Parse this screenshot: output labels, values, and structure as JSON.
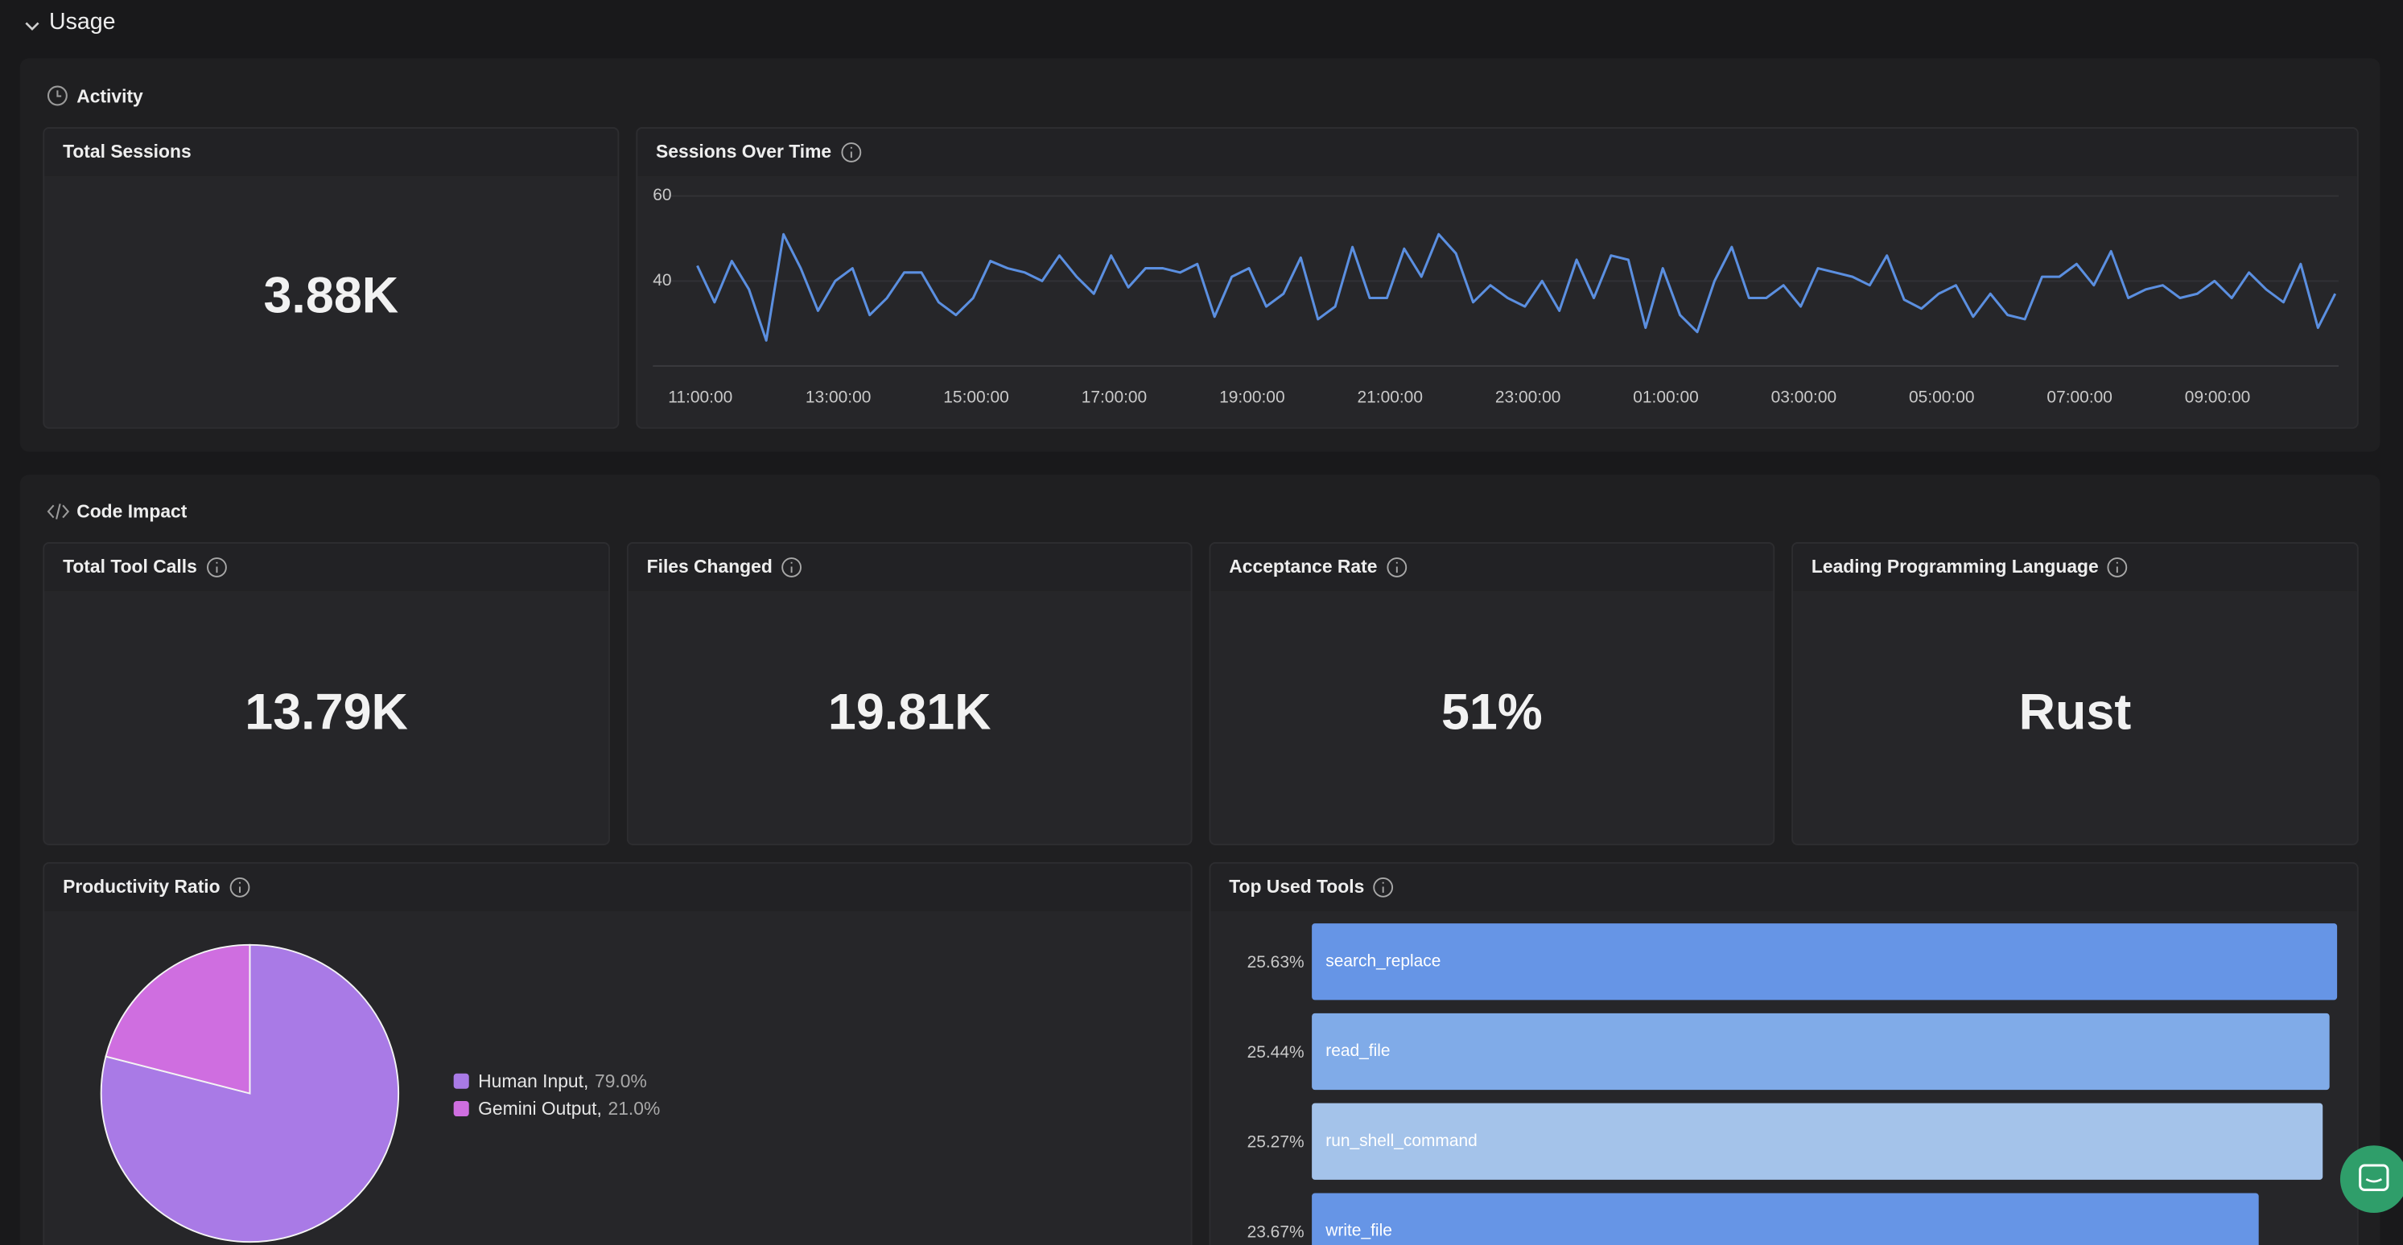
{
  "header": {
    "title": "Usage"
  },
  "activity": {
    "title": "Activity",
    "cards": [
      {
        "title": "Total Sessions",
        "value": "3.88K"
      }
    ]
  },
  "code_impact": {
    "title": "Code Impact",
    "cards": [
      {
        "title": "Total Tool Calls",
        "value": "13.79K"
      },
      {
        "title": "Files Changed",
        "value": "19.81K"
      },
      {
        "title": "Acceptance Rate",
        "value": "51%"
      },
      {
        "title": "Leading Programming Language",
        "value": "Rust"
      }
    ]
  },
  "chart_data": [
    {
      "type": "line",
      "title": "Sessions Over Time",
      "color": "#5b8fe0",
      "grid": true,
      "x": [
        "11:00:00",
        "11:15:00",
        "11:30:00",
        "11:45:00",
        "12:00:00",
        "12:15:00",
        "12:30:00",
        "12:45:00",
        "13:00:00",
        "13:15:00",
        "13:30:00",
        "13:45:00",
        "14:00:00",
        "14:15:00",
        "14:30:00",
        "14:45:00",
        "15:00:00",
        "15:15:00",
        "15:30:00",
        "15:45:00",
        "16:00:00",
        "16:15:00",
        "16:30:00",
        "16:45:00",
        "17:00:00",
        "17:15:00",
        "17:30:00",
        "17:45:00",
        "18:00:00",
        "18:15:00",
        "18:30:00",
        "18:45:00",
        "19:00:00",
        "19:15:00",
        "19:30:00",
        "19:45:00",
        "20:00:00",
        "20:15:00",
        "20:30:00",
        "20:45:00",
        "21:00:00",
        "21:15:00",
        "21:30:00",
        "21:45:00",
        "22:00:00",
        "22:15:00",
        "22:30:00",
        "22:45:00",
        "23:00:00",
        "23:15:00",
        "23:30:00",
        "23:45:00",
        "00:00:00",
        "00:15:00",
        "00:30:00",
        "00:45:00",
        "01:00:00",
        "01:15:00",
        "01:30:00",
        "01:45:00",
        "02:00:00",
        "02:15:00",
        "02:30:00",
        "02:45:00",
        "03:00:00",
        "03:15:00",
        "03:30:00",
        "03:45:00",
        "04:00:00",
        "04:15:00",
        "04:30:00",
        "04:45:00",
        "05:00:00",
        "05:15:00",
        "05:30:00",
        "05:45:00",
        "06:00:00",
        "06:15:00",
        "06:30:00",
        "06:45:00",
        "07:00:00",
        "07:15:00",
        "07:30:00",
        "07:45:00",
        "08:00:00",
        "08:15:00",
        "08:30:00",
        "08:45:00",
        "09:00:00",
        "09:15:00",
        "09:30:00",
        "09:45:00",
        "10:00:00",
        "10:15:00",
        "10:30:00",
        "10:45:00"
      ],
      "values": [
        43.6,
        35,
        44.7,
        38,
        26,
        51,
        43,
        33,
        40,
        43,
        32,
        36,
        42,
        42,
        35,
        32,
        36,
        44.7,
        43,
        42,
        40,
        46,
        41,
        37,
        46,
        38.5,
        43,
        43,
        42,
        44,
        31.6,
        41,
        43,
        34,
        37,
        45.5,
        31,
        34,
        48,
        36,
        36,
        47.6,
        41,
        51,
        46.5,
        35,
        39,
        36,
        34,
        40,
        33,
        45,
        36,
        46,
        45,
        29,
        43,
        32,
        28,
        40,
        48,
        36,
        36,
        39,
        34,
        43,
        42,
        41,
        39,
        46,
        35.6,
        33.5,
        37,
        39,
        31.6,
        37,
        32,
        31,
        41,
        41,
        44,
        39,
        47,
        36,
        38,
        39,
        36,
        37,
        40,
        36,
        42,
        38,
        35,
        44,
        29,
        37
      ],
      "ylim": [
        20,
        60
      ],
      "yticks": [
        40,
        60
      ],
      "xticks": [
        "11:00:00",
        "13:00:00",
        "15:00:00",
        "17:00:00",
        "19:00:00",
        "21:00:00",
        "23:00:00",
        "01:00:00",
        "03:00:00",
        "05:00:00",
        "07:00:00",
        "09:00:00"
      ]
    },
    {
      "type": "pie",
      "title": "Productivity Ratio",
      "legend": "right",
      "categories": [
        "Human Input",
        "Gemini Output"
      ],
      "values": [
        79.0,
        21.0
      ],
      "value_labels": [
        "79.0%",
        "21.0%"
      ],
      "colors": [
        "#a97ae6",
        "#cf6ee0"
      ]
    },
    {
      "type": "bar",
      "orientation": "horizontal",
      "title": "Top Used Tools",
      "categories": [
        "search_replace",
        "read_file",
        "run_shell_command",
        "write_file"
      ],
      "values": [
        25.63,
        25.44,
        25.27,
        23.67
      ],
      "value_labels": [
        "25.63%",
        "25.44%",
        "25.27%",
        "23.67%"
      ],
      "colors": [
        "#6695e6",
        "#80abe8",
        "#a4c3ea",
        "#6695e6"
      ]
    }
  ]
}
